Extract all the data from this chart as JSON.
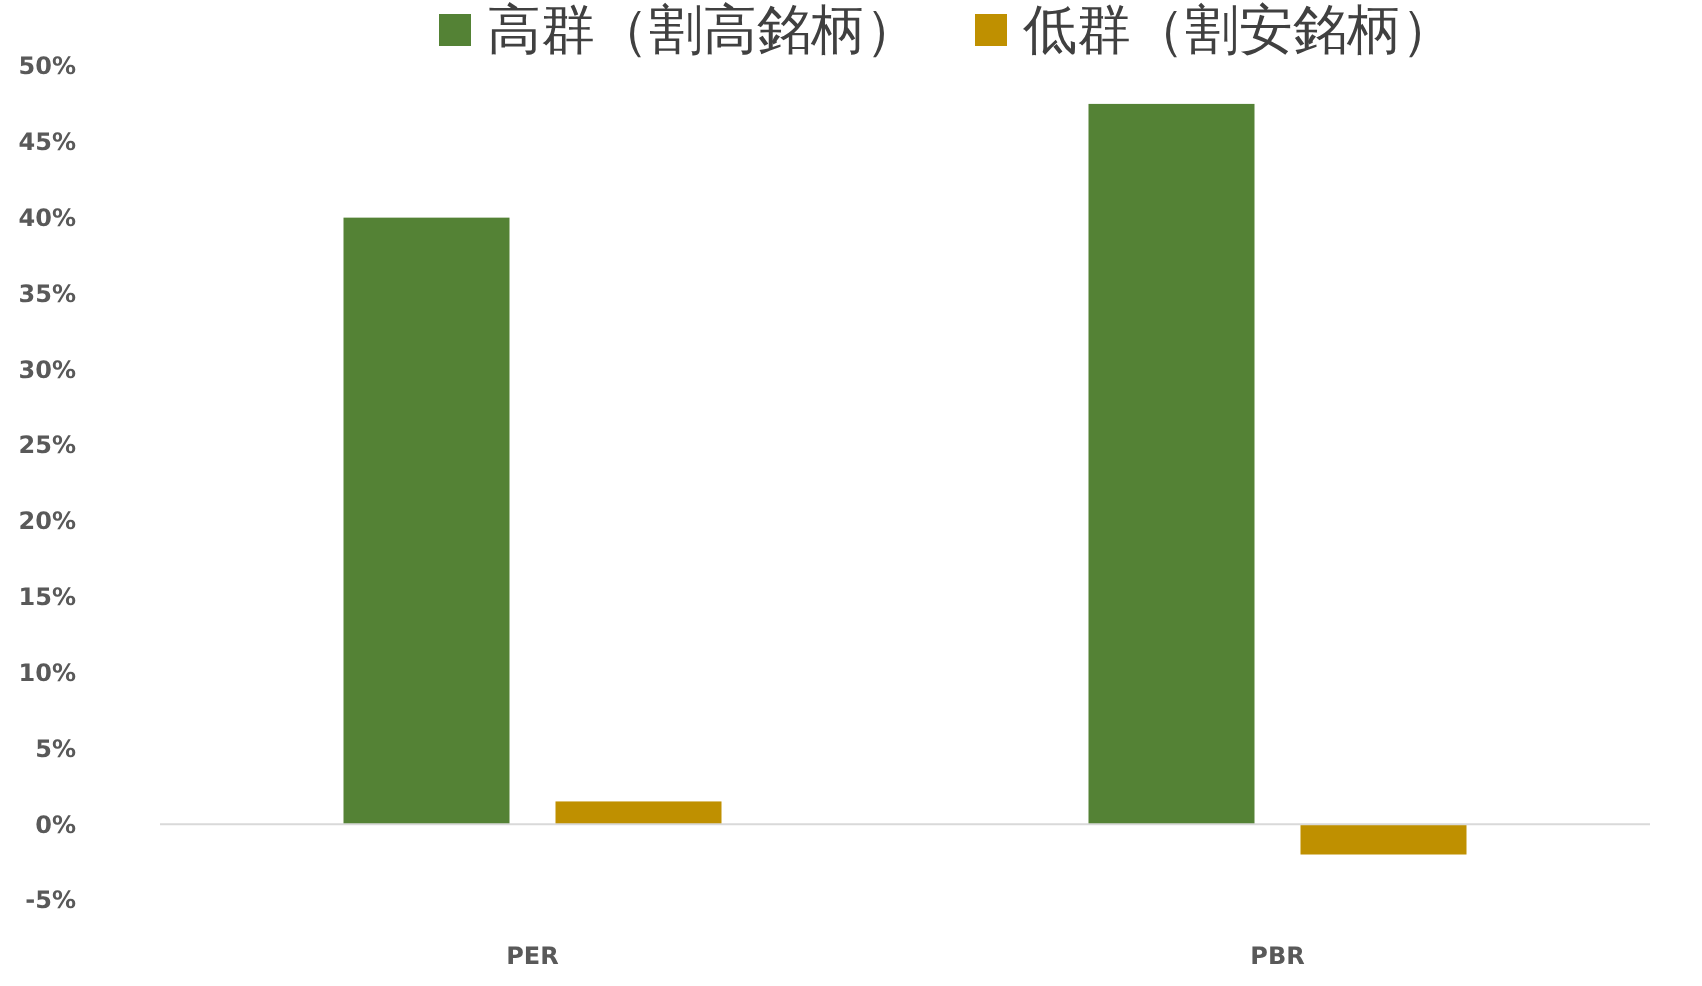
{
  "chart_data": {
    "type": "bar",
    "categories": [
      "PER",
      "PBR"
    ],
    "series": [
      {
        "name": "高群（割高銘柄）",
        "color": "#548235",
        "values": [
          40,
          47.5
        ]
      },
      {
        "name": "低群（割安銘柄）",
        "color": "#bf9000",
        "values": [
          1.5,
          -2
        ]
      }
    ],
    "ylim": [
      -5,
      50
    ],
    "yticks": [
      {
        "value": -5,
        "label": "-5%"
      },
      {
        "value": 0,
        "label": "0%"
      },
      {
        "value": 5,
        "label": "5%"
      },
      {
        "value": 10,
        "label": "10%"
      },
      {
        "value": 15,
        "label": "15%"
      },
      {
        "value": 20,
        "label": "20%"
      },
      {
        "value": 25,
        "label": "25%"
      },
      {
        "value": 30,
        "label": "30%"
      },
      {
        "value": 35,
        "label": "35%"
      },
      {
        "value": 40,
        "label": "40%"
      },
      {
        "value": 45,
        "label": "45%"
      },
      {
        "value": 50,
        "label": "50%"
      }
    ],
    "legend": "top"
  }
}
